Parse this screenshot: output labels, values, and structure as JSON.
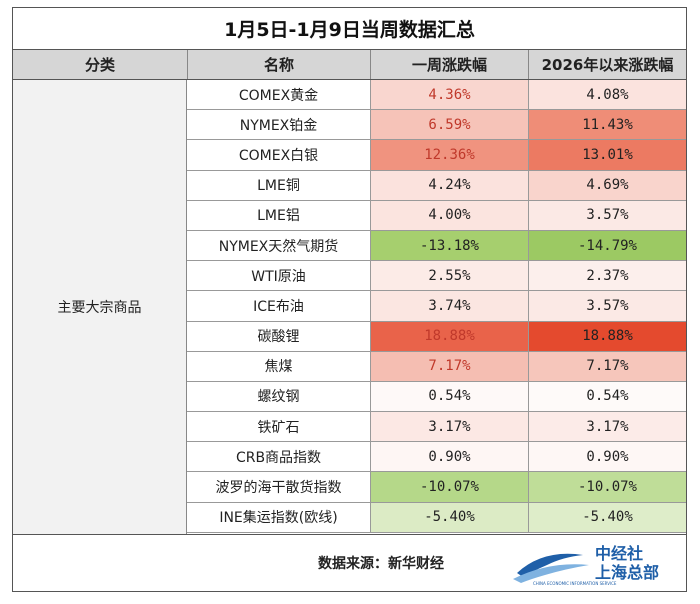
{
  "title": "1月5日-1月9日当周数据汇总",
  "headers": {
    "category": "分类",
    "name": "名称",
    "week_change": "一周涨跌幅",
    "ytd_change": "2026年以来涨跌幅"
  },
  "category_label": "主要大宗商品",
  "rows": [
    {
      "name": "COMEX黄金",
      "week": "4.36%",
      "ytd": "4.08%",
      "week_bg": "#f9d6cf",
      "ytd_bg": "#fbe3de",
      "week_red": true
    },
    {
      "name": "NYMEX铂金",
      "week": "6.59%",
      "ytd": "11.43%",
      "week_bg": "#f6c3b8",
      "ytd_bg": "#ef8d77",
      "week_red": true
    },
    {
      "name": "COMEX白银",
      "week": "12.36%",
      "ytd": "13.01%",
      "week_bg": "#f0937f",
      "ytd_bg": "#ec7a62",
      "week_red": true
    },
    {
      "name": "LME铜",
      "week": "4.24%",
      "ytd": "4.69%",
      "week_bg": "#fbe2dd",
      "ytd_bg": "#f9d4cc",
      "week_red": false
    },
    {
      "name": "LME铝",
      "week": "4.00%",
      "ytd": "3.57%",
      "week_bg": "#fbe4df",
      "ytd_bg": "#fbe9e5",
      "week_red": false
    },
    {
      "name": "NYMEX天然气期货",
      "week": "-13.18%",
      "ytd": "-14.79%",
      "week_bg": "#a6cf6e",
      "ytd_bg": "#9cc963",
      "week_red": false
    },
    {
      "name": "WTI原油",
      "week": "2.55%",
      "ytd": "2.37%",
      "week_bg": "#fcebe7",
      "ytd_bg": "#fcefec",
      "week_red": false
    },
    {
      "name": "ICE布油",
      "week": "3.74%",
      "ytd": "3.57%",
      "week_bg": "#fbe6e1",
      "ytd_bg": "#fbe9e5",
      "week_red": false
    },
    {
      "name": "碳酸锂",
      "week": "18.88%",
      "ytd": "18.88%",
      "week_bg": "#e9634a",
      "ytd_bg": "#e44a2e",
      "week_red": true
    },
    {
      "name": "焦煤",
      "week": "7.17%",
      "ytd": "7.17%",
      "week_bg": "#f5beb2",
      "ytd_bg": "#f6c6bb",
      "week_red": true
    },
    {
      "name": "螺纹钢",
      "week": "0.54%",
      "ytd": "0.54%",
      "week_bg": "#fef9f8",
      "ytd_bg": "#fefaf9",
      "week_red": false
    },
    {
      "name": "铁矿石",
      "week": "3.17%",
      "ytd": "3.17%",
      "week_bg": "#fce8e4",
      "ytd_bg": "#fcebe8",
      "week_red": false
    },
    {
      "name": "CRB商品指数",
      "week": "0.90%",
      "ytd": "0.90%",
      "week_bg": "#fef6f4",
      "ytd_bg": "#fef7f5",
      "week_red": false
    },
    {
      "name": "波罗的海干散货指数",
      "week": "-10.07%",
      "ytd": "-10.07%",
      "week_bg": "#b5d889",
      "ytd_bg": "#bfdd98",
      "week_red": false
    },
    {
      "name": "INE集运指数(欧线)",
      "week": "-5.40%",
      "ytd": "-5.40%",
      "week_bg": "#dcebc5",
      "ytd_bg": "#deedc9",
      "week_red": false
    }
  ],
  "footer": {
    "source": "数据来源：新华财经",
    "logo_line1": "中经社",
    "logo_line2": "上海总部",
    "logo_small": "CHINA ECONOMIC INFORMATION SERVICE",
    "logo_color": "#1f5fa8"
  }
}
